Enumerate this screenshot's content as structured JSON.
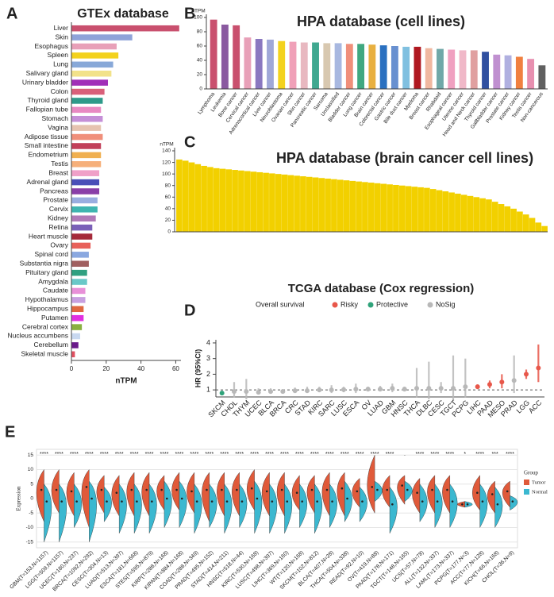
{
  "chart_data": [
    {
      "type": "bar",
      "orientation": "horizontal",
      "label": "A",
      "title": "GTEx database",
      "xlabel": "nTPM",
      "categories": [
        "Liver",
        "Skin",
        "Esophagus",
        "Spleen",
        "Lung",
        "Salivary gland",
        "Urinary bladder",
        "Colon",
        "Thyroid gland",
        "Fallopian tube",
        "Stomach",
        "Vagina",
        "Adipose tissue",
        "Small intestine",
        "Endometrium",
        "Testis",
        "Breast",
        "Adrenal gland",
        "Pancreas",
        "Prostate",
        "Cervix",
        "Kidney",
        "Retina",
        "Heart muscle",
        "Ovary",
        "Spinal cord",
        "Substantia nigra",
        "Pituitary gland",
        "Amygdala",
        "Caudate",
        "Hypothalamus",
        "Hippocampus",
        "Putamen",
        "Cerebral cortex",
        "Nucleus accumbens",
        "Cerebellum",
        "Skeletal muscle"
      ],
      "values": [
        62,
        35,
        26,
        27,
        24,
        23,
        21,
        19,
        18,
        17,
        18,
        17,
        18,
        17,
        17,
        17,
        16,
        16,
        16,
        15,
        15,
        14,
        12,
        12,
        11,
        10,
        10,
        9,
        9,
        8,
        8,
        7,
        7,
        6,
        5,
        4,
        2
      ],
      "colors": [
        "#c9506e",
        "#8fa3d9",
        "#e8a0b8",
        "#f3d21e",
        "#88a8d8",
        "#f2e28a",
        "#a12fb8",
        "#d9607a",
        "#2e9a8a",
        "#e889c2",
        "#c58fd7",
        "#e6c3b0",
        "#f08f7a",
        "#c2405a",
        "#f0b050",
        "#f6b07a",
        "#f0a0c8",
        "#4a4fb8",
        "#8a3fa8",
        "#9aaee0",
        "#3fb5b0",
        "#b07ab8",
        "#7a60b8",
        "#a52a3a",
        "#e8605a",
        "#8aa8e0",
        "#a06060",
        "#30a080",
        "#6ac8c8",
        "#e890d8",
        "#c8a0e0",
        "#e06840",
        "#e030e0",
        "#8ab040",
        "#c8d8f0",
        "#6a1a8a",
        "#e05060"
      ],
      "xlim": [
        0,
        63
      ],
      "xticks": [
        0,
        20,
        40,
        60
      ]
    },
    {
      "type": "bar",
      "orientation": "vertical",
      "label": "B",
      "title": "HPA database (cell lines)",
      "ylabel": "nTPM",
      "categories": [
        "Lymphoma",
        "Leukemia",
        "Bone cancer",
        "Cervical cancer",
        "Adrenocortical cancer",
        "Liver cancer",
        "Neuroblastoma",
        "Ovarian cancer",
        "Skin cancer",
        "Pancreatic cancer",
        "Sarcoma",
        "Unclassified",
        "Bladder cancer",
        "Lung cancer",
        "Brain cancer",
        "Colorectal cancer",
        "Gastric cancer",
        "Bile duct cancer",
        "Myeloma",
        "Breast cancer",
        "Rhabdoid",
        "Esophageal cancer",
        "Uterine cancer",
        "Head and Neck cancer",
        "Thyroid cancer",
        "Gallbladder cancer",
        "Prostate cancer",
        "Kidney cancer",
        "Testis cancer",
        "Non-cancerous"
      ],
      "values": [
        97,
        90,
        89,
        72,
        70,
        69,
        67,
        66,
        65,
        65,
        64,
        64,
        63,
        63,
        62,
        61,
        60,
        59,
        59,
        57,
        56,
        55,
        54,
        54,
        52,
        48,
        47,
        45,
        42,
        33
      ],
      "colors": [
        "#c9506e",
        "#8a5aa0",
        "#c9506e",
        "#e8a0b8",
        "#8a78c0",
        "#a0a8d8",
        "#f3d21e",
        "#f0a0b8",
        "#e8b8c0",
        "#40a890",
        "#d8c8b0",
        "#a8b8e0",
        "#f08f7a",
        "#40a880",
        "#e8b040",
        "#2a70c0",
        "#6890d0",
        "#80c0e0",
        "#b01820",
        "#f0b8a0",
        "#70a8a8",
        "#f0a0c0",
        "#f0b8c8",
        "#e0a0a0",
        "#3050a0",
        "#c090d0",
        "#b0b0e0",
        "#f08040",
        "#e890b0",
        "#606060"
      ],
      "ylim": [
        0,
        100
      ],
      "yticks": [
        0,
        20,
        40,
        60,
        80,
        100
      ]
    },
    {
      "type": "bar",
      "orientation": "vertical",
      "label": "C",
      "title": "HPA database (brain cancer cell lines)",
      "ylabel": "nTPM",
      "color": "#f2d000",
      "categories": [
        null,
        null,
        null,
        null,
        null,
        null,
        null,
        null,
        null,
        null,
        null,
        null,
        null,
        null,
        null,
        null,
        null,
        null,
        null,
        null,
        null,
        null,
        null,
        null,
        null,
        null,
        null,
        null,
        null,
        null,
        null,
        null,
        null,
        null,
        null,
        null,
        null,
        null,
        null,
        null,
        null,
        null,
        null,
        null,
        null,
        null,
        null,
        null,
        null,
        null,
        null,
        null,
        null,
        null,
        null,
        null,
        null,
        null,
        null,
        null
      ],
      "values": [
        125,
        123,
        120,
        117,
        114,
        112,
        110,
        109,
        108,
        107,
        106,
        105,
        104,
        103,
        102,
        101,
        100,
        99,
        98,
        97,
        96,
        95,
        94,
        93,
        92,
        91,
        90,
        89,
        88,
        87,
        86,
        85,
        84,
        83,
        82,
        81,
        80,
        79,
        78,
        77,
        76,
        74,
        72,
        70,
        68,
        66,
        64,
        62,
        60,
        58,
        56,
        52,
        48,
        44,
        40,
        35,
        30,
        24,
        16,
        10
      ],
      "ylim": [
        0,
        140
      ],
      "yticks": [
        0,
        20,
        40,
        60,
        80,
        100,
        120,
        140
      ]
    },
    {
      "type": "forest",
      "label": "D",
      "title": "TCGA database (Cox regression)",
      "ylabel": "HR (95%CI)",
      "legend_title": "Overall survival",
      "legend": [
        {
          "name": "Risky",
          "color": "#e8574a"
        },
        {
          "name": "Protective",
          "color": "#2fa37a"
        },
        {
          "name": "NoSig",
          "color": "#b8b8b8"
        }
      ],
      "categories": [
        "SKCM",
        "CHOL",
        "THYM",
        "UCEC",
        "BLCA",
        "BRCA",
        "CRC",
        "STAD",
        "KIRC",
        "SARC",
        "LUSC",
        "ESCA",
        "OV",
        "LUAD",
        "GBM",
        "HNSC",
        "THCA",
        "DLBC",
        "CESC",
        "TGCT",
        "PCPG",
        "LIHC",
        "PAAD",
        "MESO",
        "PRAD",
        "LGG",
        "ACC"
      ],
      "values": [
        0.8,
        0.9,
        0.9,
        0.85,
        0.9,
        0.9,
        0.95,
        0.95,
        1.0,
        1.0,
        1.02,
        1.05,
        1.05,
        1.05,
        1.1,
        1.05,
        1.1,
        1.1,
        1.1,
        1.1,
        1.2,
        1.2,
        1.35,
        1.5,
        1.6,
        2.0,
        2.4
      ],
      "lower": [
        0.7,
        0.5,
        0.4,
        0.7,
        0.75,
        0.8,
        0.8,
        0.8,
        0.85,
        0.8,
        0.85,
        0.8,
        0.9,
        0.9,
        0.85,
        0.9,
        0.5,
        0.4,
        0.8,
        0.3,
        0.5,
        1.05,
        1.1,
        1.1,
        0.8,
        1.7,
        1.5
      ],
      "upper": [
        0.9,
        1.5,
        1.7,
        1.1,
        1.1,
        1.05,
        1.15,
        1.2,
        1.2,
        1.3,
        1.2,
        1.4,
        1.2,
        1.25,
        1.4,
        1.2,
        2.4,
        2.8,
        1.5,
        3.2,
        3.0,
        1.35,
        1.6,
        2.0,
        3.2,
        2.3,
        3.9
      ],
      "group": [
        "Protective",
        "NoSig",
        "NoSig",
        "NoSig",
        "NoSig",
        "NoSig",
        "NoSig",
        "NoSig",
        "NoSig",
        "NoSig",
        "NoSig",
        "NoSig",
        "NoSig",
        "NoSig",
        "NoSig",
        "NoSig",
        "NoSig",
        "NoSig",
        "NoSig",
        "NoSig",
        "NoSig",
        "Risky",
        "Risky",
        "Risky",
        "NoSig",
        "Risky",
        "Risky"
      ],
      "reference": 1,
      "ylim": [
        0.55,
        4.2
      ],
      "yticks": [
        1,
        2,
        3,
        4
      ]
    },
    {
      "type": "violin",
      "label": "E",
      "ylabel": "Expression",
      "legend_title": "Group",
      "legend": [
        {
          "name": "Tumor",
          "color": "#e05a3a"
        },
        {
          "name": "Normal",
          "color": "#3bb8d0"
        }
      ],
      "categories": [
        "GBM(T=153,N=1157)",
        "LGG(T=509,N=1157)",
        "UCEC(T=180,N=237)",
        "BRCA(T=1092,N=292)",
        "CESC(T=304,N=13)",
        "LUAD(T=513,N=397)",
        "ESCA(T=181,N=668)",
        "STES(T=595,N=879)",
        "KIRP(T=288,N=168)",
        "KIPAN(T=884,N=168)",
        "COAD(T=288,N=349)",
        "PRAD(T=495,N=152)",
        "STAD(T=414,N=211)",
        "HNSC(T=518,N=44)",
        "KIRC(T=530,N=168)",
        "LUSC(T=498,N=397)",
        "LIHC(T=369,N=160)",
        "WT(T=120,N=168)",
        "SKCM(T=102,N=812)",
        "BLCA(T=407,N=28)",
        "THCA(T=504,N=338)",
        "READ(T=92,N=10)",
        "OV(T=419,N=88)",
        "PAAD(T=178,N=171)",
        "TGCT(T=148,N=165)",
        "UCS(T=57,N=78)",
        "ALL(T=132,N=337)",
        "LAML(T=173,N=337)",
        "PCPG(T=177,N=3)",
        "ACC(T=77,N=128)",
        "KICH(T=66,N=168)",
        "CHOL(T=36,N=9)"
      ],
      "significance": [
        "****",
        "****",
        "****",
        "****",
        "****",
        "****",
        "****",
        "****",
        "****",
        "****",
        "****",
        "****",
        "****",
        "****",
        "****",
        "****",
        "****",
        "****",
        "****",
        "****",
        "****",
        "****",
        "****",
        "****",
        ".",
        "****",
        "****",
        "****",
        "*",
        "****",
        "***",
        "****"
      ],
      "tumor_values": [
        3,
        3,
        2.5,
        4,
        3,
        2,
        3,
        3,
        3,
        3,
        2.5,
        3,
        3,
        3,
        3.5,
        2.5,
        3,
        2,
        3,
        3,
        3.5,
        2.5,
        4,
        3,
        4.5,
        2,
        3,
        3,
        -2,
        2,
        1.5,
        2.5
      ],
      "tumor_low": [
        -8,
        -5,
        -6,
        -10,
        -5,
        -6,
        -6,
        -6,
        -4,
        -4,
        -5,
        -8,
        -6,
        -6,
        -4,
        -6,
        -6,
        -4,
        -5,
        -6,
        -6,
        -3,
        -5,
        -3,
        -2,
        -5,
        -5,
        -5,
        -3,
        -4,
        -5,
        -3
      ],
      "tumor_high": [
        10,
        10,
        9,
        10,
        8,
        8,
        9,
        9,
        8,
        9,
        9,
        9,
        9,
        9,
        10,
        9,
        9,
        8,
        8,
        9,
        9,
        7,
        15,
        8,
        8,
        7,
        8,
        8,
        -1,
        8,
        6,
        6
      ],
      "normal_values": [
        -1,
        -1,
        -1,
        0,
        -1,
        -1,
        -1,
        -1,
        0,
        0,
        -1,
        -1,
        -1,
        -1,
        0,
        -1,
        -1,
        -1,
        -1,
        -1,
        0,
        -1,
        3,
        -2,
        3,
        -1,
        -1,
        -1,
        -2,
        -1,
        -2,
        -1
      ],
      "normal_low": [
        -15,
        -15,
        -10,
        -15,
        -8,
        -12,
        -12,
        -12,
        -10,
        -10,
        -12,
        -10,
        -12,
        -10,
        -12,
        -12,
        -12,
        -10,
        -12,
        -10,
        -8,
        -8,
        -1,
        -12,
        -1,
        -8,
        -10,
        -10,
        -3,
        -10,
        -10,
        -4
      ],
      "normal_high": [
        5,
        5,
        5,
        6,
        4,
        5,
        5,
        5,
        6,
        6,
        5,
        5,
        5,
        5,
        6,
        5,
        5,
        5,
        5,
        5,
        6,
        4,
        6,
        4,
        6,
        5,
        5,
        5,
        -1,
        5,
        4,
        1
      ],
      "ylim": [
        -17,
        17
      ],
      "yticks": [
        -15,
        -10,
        -5,
        0,
        5,
        10,
        15
      ]
    }
  ]
}
